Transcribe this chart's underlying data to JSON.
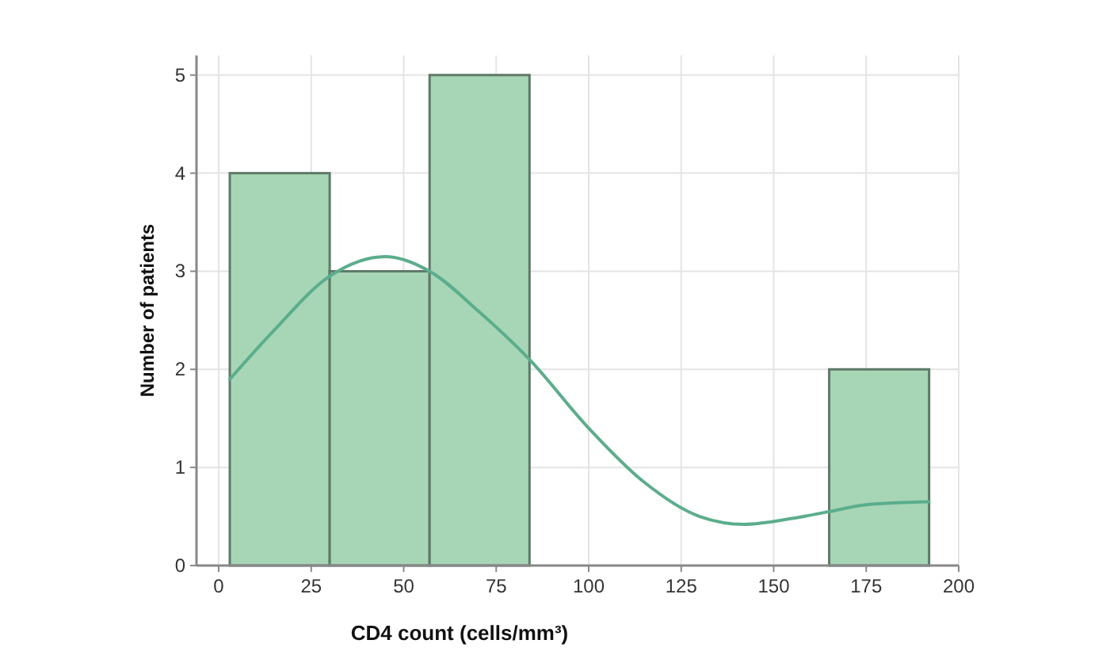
{
  "chart_data": {
    "type": "histogram",
    "xlabel": "CD4 count (cells/mm³)",
    "ylabel": "Number of patients",
    "bins": [
      3,
      30,
      57,
      84,
      111,
      138,
      165,
      192
    ],
    "values": [
      4,
      3,
      5,
      0,
      0,
      0,
      2
    ],
    "color": "#a6d6b6",
    "series": [
      {
        "type": "line",
        "color": "#5aae8c",
        "x": [
          3,
          15,
          30,
          45,
          57,
          70,
          84,
          100,
          115,
          130,
          142,
          155,
          165,
          175,
          192
        ],
        "values": [
          1.9,
          2.4,
          2.95,
          3.15,
          3.0,
          2.6,
          2.1,
          1.4,
          0.85,
          0.5,
          0.42,
          0.48,
          0.55,
          0.62,
          0.65
        ]
      }
    ],
    "xlim": [
      -6,
      200
    ],
    "xticks": [
      0,
      25,
      50,
      75,
      100,
      125,
      150,
      175,
      200
    ],
    "ylim": [
      0,
      5.2
    ],
    "yticks": [
      0,
      1,
      2,
      3,
      4,
      5
    ],
    "grid": true
  }
}
